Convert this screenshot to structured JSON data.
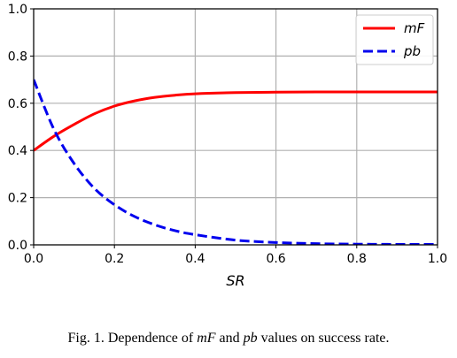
{
  "chart_data": {
    "type": "line",
    "xlabel": "SR",
    "ylabel": "",
    "xlim": [
      0.0,
      1.0
    ],
    "ylim": [
      0.0,
      1.0
    ],
    "xticks": [
      "0.0",
      "0.2",
      "0.4",
      "0.6",
      "0.8",
      "1.0"
    ],
    "yticks": [
      "0.0",
      "0.2",
      "0.4",
      "0.6",
      "0.8",
      "1.0"
    ],
    "grid": true,
    "legend_position": "top-right",
    "series": [
      {
        "name": "mF",
        "color": "#ff0000",
        "style": "solid",
        "x": [
          0.0,
          0.05,
          0.1,
          0.15,
          0.2,
          0.25,
          0.3,
          0.35,
          0.4,
          0.5,
          0.6,
          0.7,
          0.8,
          0.9,
          1.0
        ],
        "y": [
          0.4,
          0.46,
          0.51,
          0.555,
          0.588,
          0.61,
          0.625,
          0.634,
          0.64,
          0.645,
          0.647,
          0.648,
          0.648,
          0.648,
          0.648
        ]
      },
      {
        "name": "pb",
        "color": "#0000ee",
        "style": "dashed",
        "x": [
          0.0,
          0.05,
          0.1,
          0.15,
          0.2,
          0.25,
          0.3,
          0.35,
          0.4,
          0.5,
          0.6,
          0.7,
          0.8,
          0.9,
          1.0
        ],
        "y": [
          0.7,
          0.49,
          0.345,
          0.24,
          0.17,
          0.12,
          0.085,
          0.06,
          0.043,
          0.02,
          0.01,
          0.005,
          0.003,
          0.002,
          0.002
        ]
      }
    ]
  },
  "caption": {
    "prefix": "Fig. 1.  Dependence of ",
    "var1": "mF",
    "mid": " and ",
    "var2": "pb",
    "suffix": " values on success rate."
  }
}
